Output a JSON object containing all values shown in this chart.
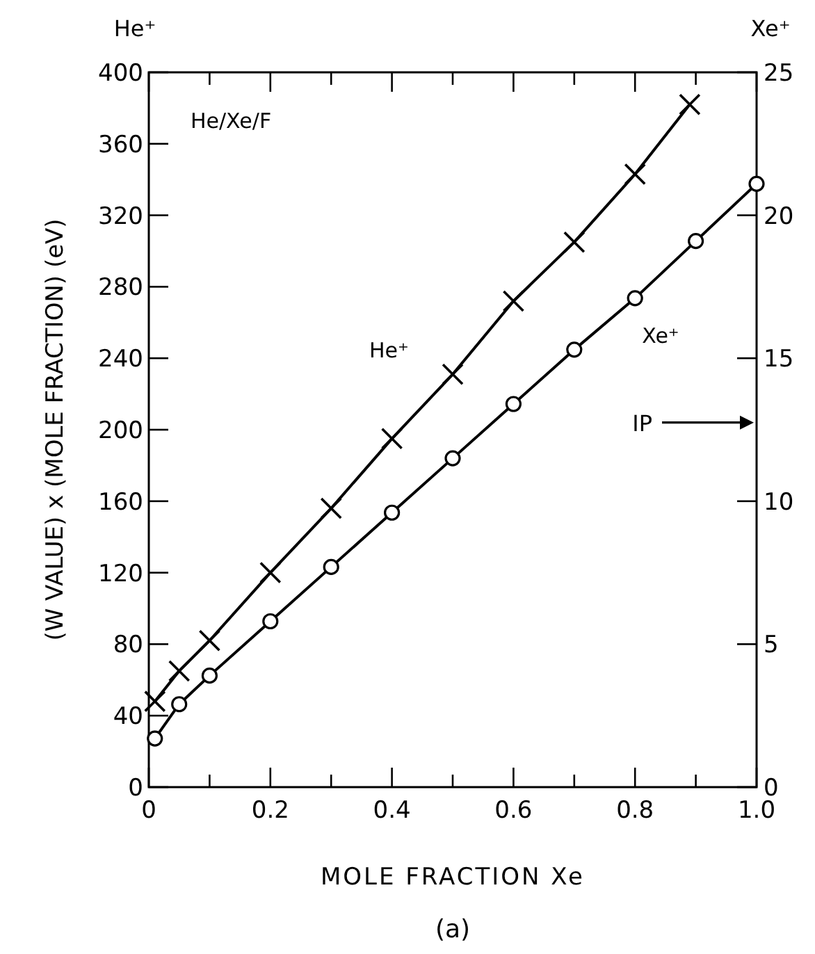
{
  "chart_data": {
    "type": "line",
    "xlabel": "MOLE FRACTION Xe",
    "ylabel": "(W VALUE) x (MOLE FRACTION) (eV)",
    "y2label": "Xe⁺",
    "series": [
      {
        "name": "He⁺",
        "color": "#000000",
        "marker": "cross",
        "x": [
          0.01,
          0.05,
          0.1,
          0.2,
          0.3,
          0.4,
          0.5,
          0.6,
          0.7,
          0.8,
          0.89
        ],
        "values": [
          48,
          65,
          82,
          120,
          156,
          195,
          231,
          272,
          305,
          343,
          382
        ]
      },
      {
        "name": "Xe⁺",
        "color": "#000000",
        "marker": "circle",
        "axis": "y2",
        "x": [
          0.01,
          0.05,
          0.1,
          0.2,
          0.3,
          0.4,
          0.5,
          0.6,
          0.7,
          0.8,
          0.9,
          1.0
        ],
        "values": [
          1.7,
          2.9,
          3.9,
          5.8,
          7.7,
          9.6,
          11.5,
          13.4,
          15.3,
          17.1,
          19.1,
          21.1
        ]
      }
    ],
    "xlim": [
      0,
      1
    ],
    "ylim": [
      0,
      400
    ],
    "y2lim": [
      0,
      25
    ],
    "xticks": [
      0,
      {
        "value": 0.1,
        "label": null
      },
      0.2,
      {
        "value": 0.3,
        "label": null
      },
      0.4,
      {
        "value": 0.5,
        "label": null
      },
      0.6,
      {
        "value": 0.7,
        "label": null
      },
      0.8,
      {
        "value": 0.9,
        "label": null
      },
      {
        "value": 1,
        "label": "1.0"
      }
    ],
    "yticks": [
      0,
      40,
      80,
      120,
      160,
      200,
      240,
      280,
      320,
      360,
      400
    ],
    "y2ticks": [
      0,
      5,
      10,
      15,
      20,
      25
    ],
    "grid": false,
    "line_style": "solid",
    "annotations": [
      "He⁺",
      "He/Xe/F",
      "(a)",
      "IP"
    ]
  }
}
